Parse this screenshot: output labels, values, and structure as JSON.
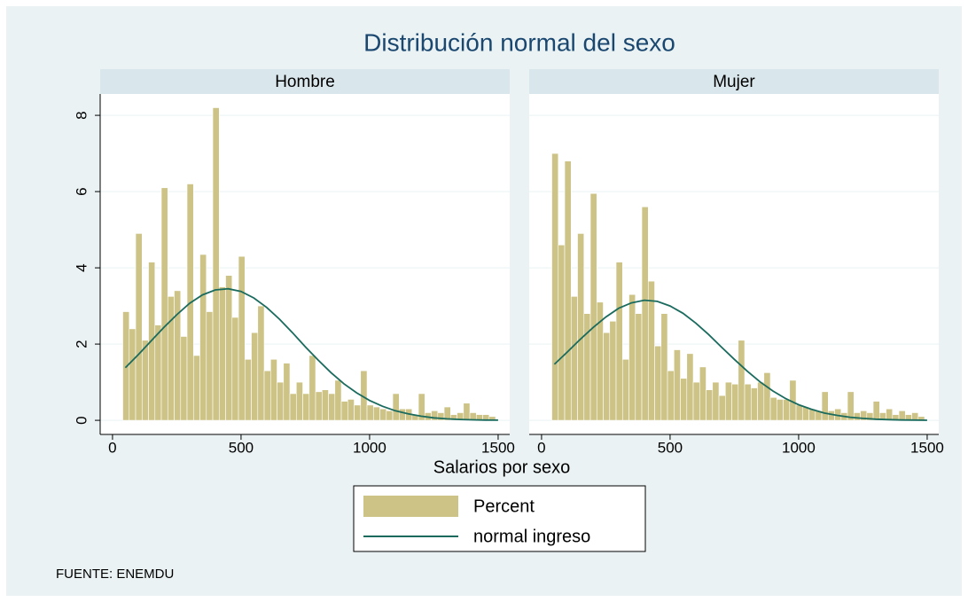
{
  "chart_data": {
    "type": "histogram",
    "title": "Distribución normal del sexo",
    "x_label": "Salarios por sexo",
    "note": "FUENTE: ENEMDU",
    "xlim": [
      -48,
      1545
    ],
    "ylim": [
      -0.37,
      8.56
    ],
    "xticks": [
      0,
      500,
      1000,
      1500
    ],
    "yticks": [
      0,
      2,
      4,
      6,
      8
    ],
    "grid": true,
    "series": [
      {
        "name": "Percent",
        "color": "#cdc386"
      },
      {
        "name": "normal ingreso",
        "color": "#1a6b5e"
      }
    ],
    "panels": [
      {
        "title": "Hombre",
        "bins": [
          40,
          65,
          90,
          115,
          140,
          165,
          190,
          215,
          240,
          265,
          290,
          315,
          340,
          365,
          390,
          415,
          440,
          465,
          490,
          515,
          540,
          565,
          590,
          615,
          640,
          665,
          690,
          715,
          740,
          765,
          790,
          815,
          840,
          865,
          890,
          915,
          940,
          965,
          990,
          1015,
          1040,
          1065,
          1090,
          1115,
          1140,
          1165,
          1190,
          1215,
          1240,
          1265,
          1290,
          1315,
          1340,
          1365,
          1390,
          1415,
          1440,
          1465,
          1490
        ],
        "counts": [
          2.85,
          2.4,
          4.9,
          2.1,
          4.15,
          2.5,
          6.1,
          3.25,
          3.4,
          2.2,
          6.2,
          1.7,
          4.35,
          2.85,
          8.2,
          3.5,
          3.8,
          2.7,
          4.3,
          1.6,
          2.3,
          3.0,
          1.3,
          1.6,
          1.0,
          1.5,
          0.7,
          1.0,
          0.7,
          1.7,
          0.75,
          0.8,
          0.7,
          1.05,
          0.5,
          0.55,
          0.4,
          1.3,
          0.4,
          0.35,
          0.3,
          0.25,
          0.7,
          0.3,
          0.3,
          0.15,
          0.7,
          0.2,
          0.25,
          0.2,
          0.35,
          0.15,
          0.2,
          0.45,
          0.2,
          0.15,
          0.15,
          0.1
        ],
        "curve_x": [
          50,
          100,
          150,
          200,
          250,
          300,
          350,
          400,
          450,
          500,
          550,
          600,
          650,
          700,
          750,
          800,
          850,
          900,
          950,
          1000,
          1050,
          1100,
          1150,
          1200,
          1250,
          1300,
          1350,
          1400,
          1450,
          1500
        ],
        "curve_values": [
          1.38,
          1.72,
          2.08,
          2.44,
          2.77,
          3.07,
          3.29,
          3.42,
          3.45,
          3.38,
          3.21,
          2.96,
          2.65,
          2.3,
          1.93,
          1.58,
          1.25,
          0.96,
          0.72,
          0.52,
          0.37,
          0.25,
          0.17,
          0.11,
          0.066,
          0.04,
          0.023,
          0.013,
          0.007,
          0.004
        ]
      },
      {
        "title": "Mujer",
        "bins": [
          40,
          65,
          90,
          115,
          140,
          165,
          190,
          215,
          240,
          265,
          290,
          315,
          340,
          365,
          390,
          415,
          440,
          465,
          490,
          515,
          540,
          565,
          590,
          615,
          640,
          665,
          690,
          715,
          740,
          765,
          790,
          815,
          840,
          865,
          890,
          915,
          940,
          965,
          990,
          1015,
          1040,
          1065,
          1090,
          1115,
          1140,
          1165,
          1190,
          1215,
          1240,
          1265,
          1290,
          1315,
          1340,
          1365,
          1390,
          1415,
          1440,
          1465,
          1490
        ],
        "counts": [
          7.0,
          4.6,
          6.8,
          3.25,
          4.9,
          2.8,
          5.95,
          3.1,
          2.3,
          2.6,
          4.15,
          1.6,
          3.3,
          2.8,
          5.6,
          3.65,
          1.95,
          2.8,
          1.3,
          1.85,
          1.1,
          1.75,
          1.0,
          1.4,
          0.8,
          1.0,
          0.65,
          1.0,
          0.95,
          2.1,
          0.95,
          0.85,
          1.0,
          1.25,
          0.6,
          0.55,
          0.55,
          1.05,
          0.4,
          0.35,
          0.3,
          0.25,
          0.75,
          0.25,
          0.3,
          0.2,
          0.75,
          0.2,
          0.25,
          0.2,
          0.5,
          0.2,
          0.3,
          0.15,
          0.25,
          0.15,
          0.2,
          0.1
        ],
        "curve_x": [
          50,
          100,
          150,
          200,
          250,
          300,
          350,
          400,
          450,
          500,
          550,
          600,
          650,
          700,
          750,
          800,
          850,
          900,
          950,
          1000,
          1050,
          1100,
          1150,
          1200,
          1250,
          1300,
          1350,
          1400,
          1450,
          1500
        ],
        "curve_values": [
          1.47,
          1.79,
          2.12,
          2.43,
          2.71,
          2.94,
          3.08,
          3.15,
          3.12,
          3.0,
          2.81,
          2.55,
          2.25,
          1.92,
          1.6,
          1.29,
          1.01,
          0.77,
          0.57,
          0.41,
          0.29,
          0.19,
          0.13,
          0.08,
          0.05,
          0.03,
          0.018,
          0.01,
          0.006,
          0.003
        ]
      }
    ]
  }
}
